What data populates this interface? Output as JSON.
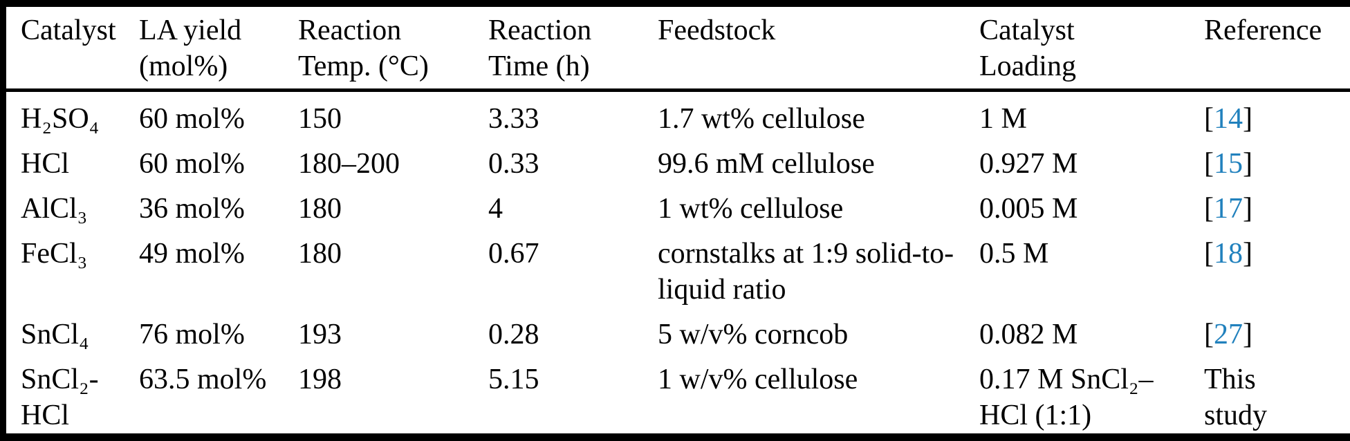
{
  "colors": {
    "citation_blue": "#2181bd",
    "text": "#000000",
    "rules": "#000000",
    "background": "#ffffff"
  },
  "table": {
    "columns": [
      {
        "id": "catalyst",
        "label": "Catalyst"
      },
      {
        "id": "la_yield",
        "label": "LA yield (mol%)"
      },
      {
        "id": "reaction_temp",
        "label": "Reaction Temp. (°C)"
      },
      {
        "id": "reaction_time",
        "label": "Reaction Time (h)"
      },
      {
        "id": "feedstock",
        "label": "Feedstock"
      },
      {
        "id": "catalyst_loading",
        "label": "Catalyst Loading"
      },
      {
        "id": "reference",
        "label": "Reference"
      }
    ],
    "rows": [
      {
        "catalyst": "H₂SO₄",
        "la_yield": "60 mol%",
        "reaction_temp": "150",
        "reaction_time": "3.33",
        "feedstock": "1.7 wt% cellulose",
        "catalyst_loading": "1 M",
        "reference": {
          "kind": "citation",
          "number": "14"
        }
      },
      {
        "catalyst": "HCl",
        "la_yield": "60 mol%",
        "reaction_temp": "180–200",
        "reaction_time": "0.33",
        "feedstock": "99.6 mM cellulose",
        "catalyst_loading": "0.927 M",
        "reference": {
          "kind": "citation",
          "number": "15"
        }
      },
      {
        "catalyst": "AlCl₃",
        "la_yield": "36 mol%",
        "reaction_temp": "180",
        "reaction_time": "4",
        "feedstock": "1 wt% cellulose",
        "catalyst_loading": "0.005 M",
        "reference": {
          "kind": "citation",
          "number": "17"
        }
      },
      {
        "catalyst": "FeCl₃",
        "la_yield": "49 mol%",
        "reaction_temp": "180",
        "reaction_time": "0.67",
        "feedstock": "cornstalks at 1:9 solid-to-liquid ratio",
        "catalyst_loading": "0.5 M",
        "reference": {
          "kind": "citation",
          "number": "18"
        }
      },
      {
        "catalyst": "SnCl₄",
        "la_yield": "76 mol%",
        "reaction_temp": "193",
        "reaction_time": "0.28",
        "feedstock": "5 w/v% corncob",
        "catalyst_loading": "0.082 M",
        "reference": {
          "kind": "citation",
          "number": "27"
        }
      },
      {
        "catalyst": "SnCl₂-HCl",
        "la_yield": "63.5 mol%",
        "reaction_temp": "198",
        "reaction_time": "5.15",
        "feedstock": "1 w/v% cellulose",
        "catalyst_loading": "0.17 M SnCl₂–HCl (1:1)",
        "reference": {
          "kind": "text",
          "text": "This study"
        }
      }
    ]
  }
}
